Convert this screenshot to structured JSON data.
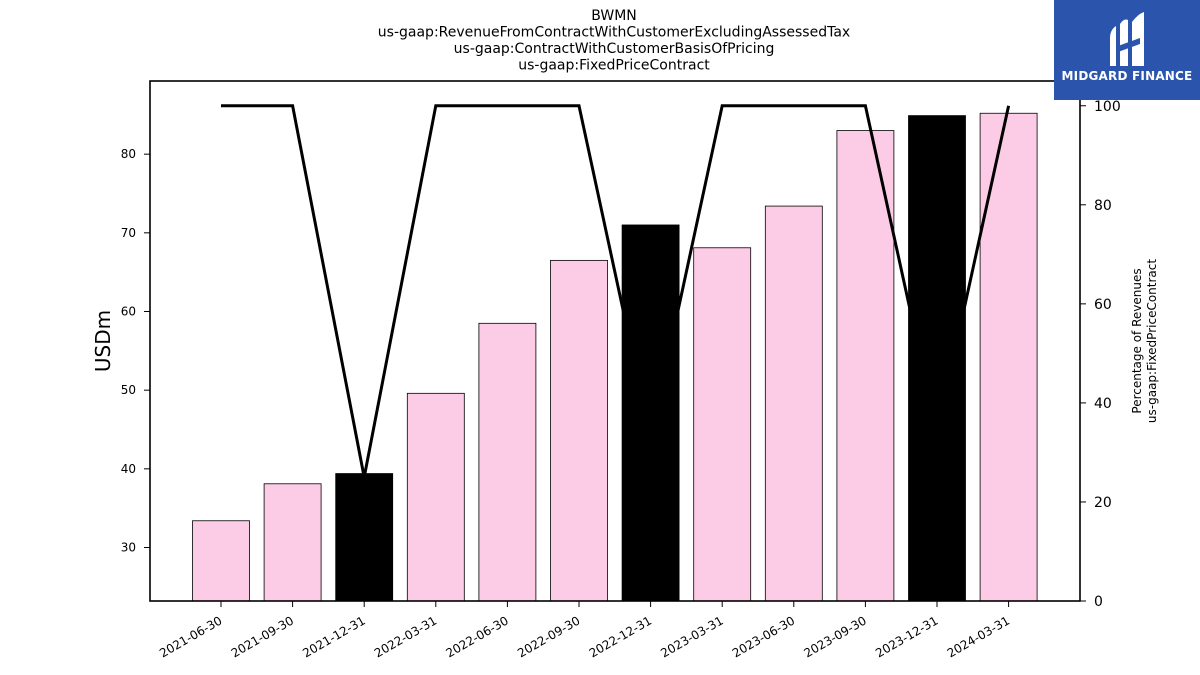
{
  "chart_data": {
    "type": "bar",
    "title_lines": [
      "BWMN",
      "us-gaap:RevenueFromContractWithCustomerExcludingAssessedTax",
      "us-gaap:ContractWithCustomerBasisOfPricing",
      "us-gaap:FixedPriceContract"
    ],
    "categories": [
      "2021-06-30",
      "2021-09-30",
      "2021-12-31",
      "2022-03-31",
      "2022-06-30",
      "2022-09-30",
      "2022-12-31",
      "2023-03-31",
      "2023-06-30",
      "2023-09-30",
      "2023-12-31",
      "2024-03-31"
    ],
    "series": [
      {
        "kind": "bar",
        "axis": "left",
        "values": [
          33.4,
          38.1,
          39.4,
          49.6,
          58.5,
          66.5,
          71.0,
          68.1,
          73.4,
          83.0,
          84.9,
          85.2
        ],
        "colors": [
          "#fccbe5",
          "#fccbe5",
          "#000000",
          "#fccbe5",
          "#fccbe5",
          "#fccbe5",
          "#000000",
          "#fccbe5",
          "#fccbe5",
          "#fccbe5",
          "#000000",
          "#fccbe5"
        ]
      },
      {
        "kind": "line",
        "axis": "right",
        "values": [
          100,
          100,
          25,
          100,
          100,
          100,
          33,
          100,
          100,
          100,
          34,
          100
        ],
        "color": "#000000"
      }
    ],
    "ylabel": "USDm",
    "ylim": [
      23.2,
      89.3
    ],
    "yticks": [
      30,
      40,
      50,
      60,
      70,
      80
    ],
    "y2label_lines": [
      "Percentage of Revenues",
      "us-gaap:FixedPriceContract"
    ],
    "y2lim": [
      0,
      105
    ],
    "y2ticks": [
      0,
      20,
      40,
      60,
      80,
      100
    ],
    "grid": false
  },
  "logo": {
    "text": "MIDGARD FINANCE",
    "bg_color": "#2b55ad"
  }
}
